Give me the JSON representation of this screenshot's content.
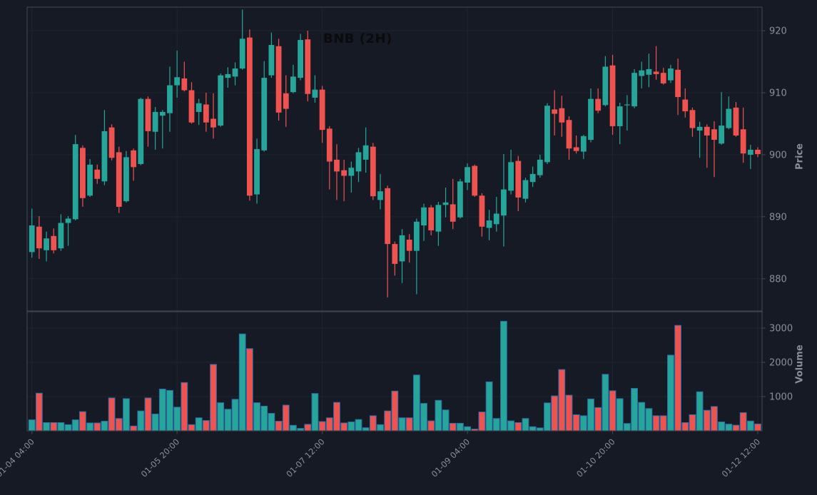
{
  "chart_data": {
    "type": "candlestick",
    "title": "BNB (2H)",
    "symbol": "BNB",
    "timeframe": "2H",
    "legend_position": "none",
    "grid": true,
    "price_axis": {
      "label": "Price",
      "side": "right",
      "ticks": [
        880,
        890,
        900,
        910,
        920
      ],
      "range": [
        874.8,
        923.8
      ]
    },
    "volume_axis": {
      "label": "Volume",
      "side": "right",
      "ticks": [
        1000,
        2000,
        3000
      ],
      "range": [
        0,
        3480
      ]
    },
    "x_axis": {
      "tick_labels": [
        "01-04 04:00",
        "01-05 20:00",
        "01-07 12:00",
        "01-09 04:00",
        "01-10 20:00",
        "01-12 12:00"
      ],
      "tick_indices": [
        0,
        20,
        40,
        60,
        80,
        100
      ],
      "rotation_deg": 45
    },
    "colors": {
      "up": "#26a69a",
      "down": "#ef5350",
      "volume_edge": "#2b6da8",
      "background": "#161a25",
      "grid": "#20242f",
      "spine": "#3d434e",
      "text": "#8b8e98",
      "title": "#0b0b0d"
    },
    "columns": [
      "time",
      "open",
      "high",
      "low",
      "close",
      "volume"
    ],
    "candles": [
      [
        "01-04 04:00",
        884.3,
        891.3,
        883.4,
        888.6,
        320
      ],
      [
        "01-04 06:00",
        888.4,
        890.1,
        883.2,
        884.9,
        1100
      ],
      [
        "01-04 08:00",
        884.6,
        887.6,
        882.8,
        886.5,
        240
      ],
      [
        "01-04 10:00",
        886.9,
        888.1,
        884.1,
        884.6,
        240
      ],
      [
        "01-04 12:00",
        884.9,
        890.4,
        884.5,
        889.0,
        240
      ],
      [
        "01-04 14:00",
        889.0,
        890.1,
        885.3,
        889.7,
        180
      ],
      [
        "01-04 16:00",
        889.6,
        903.2,
        889.4,
        901.7,
        320
      ],
      [
        "01-04 18:00",
        901.1,
        901.5,
        891.6,
        893.0,
        560
      ],
      [
        "01-04 20:00",
        893.4,
        899.3,
        893.2,
        898.4,
        230
      ],
      [
        "01-04 22:00",
        897.6,
        898.4,
        895.3,
        896.1,
        230
      ],
      [
        "01-05 00:00",
        895.7,
        907.2,
        895.1,
        903.8,
        280
      ],
      [
        "01-05 02:00",
        904.4,
        904.9,
        899.1,
        899.5,
        960
      ],
      [
        "01-05 04:00",
        900.4,
        901.3,
        890.6,
        891.6,
        360
      ],
      [
        "01-05 06:00",
        892.5,
        900.6,
        892.3,
        899.6,
        940
      ],
      [
        "01-05 08:00",
        900.7,
        901.0,
        895.8,
        898.0,
        140
      ],
      [
        "01-05 10:00",
        898.5,
        909.2,
        898.3,
        909.0,
        580
      ],
      [
        "01-05 12:00",
        909.0,
        909.4,
        901.3,
        903.8,
        960
      ],
      [
        "01-05 14:00",
        903.7,
        907.7,
        900.8,
        906.9,
        490
      ],
      [
        "01-05 16:00",
        906.3,
        907.2,
        901.0,
        906.9,
        1220
      ],
      [
        "01-05 18:00",
        906.7,
        914.2,
        903.7,
        911.2,
        1180
      ],
      [
        "01-05 20:00",
        911.2,
        916.8,
        909.2,
        912.5,
        690
      ],
      [
        "01-05 22:00",
        912.3,
        915.0,
        910.2,
        910.4,
        1410
      ],
      [
        "01-06 00:00",
        910.4,
        911.7,
        905.0,
        905.2,
        180
      ],
      [
        "01-06 02:00",
        906.9,
        909.0,
        904.8,
        908.3,
        380
      ],
      [
        "01-06 04:00",
        908.1,
        910.0,
        903.7,
        905.2,
        300
      ],
      [
        "01-06 06:00",
        905.8,
        909.9,
        902.6,
        904.4,
        1940
      ],
      [
        "01-06 08:00",
        904.7,
        913.1,
        904.5,
        912.8,
        820
      ],
      [
        "01-06 10:00",
        912.4,
        914.1,
        910.8,
        913.0,
        630
      ],
      [
        "01-06 12:00",
        912.6,
        914.9,
        911.2,
        913.9,
        920
      ],
      [
        "01-06 14:00",
        913.9,
        923.4,
        913.7,
        918.7,
        2830
      ],
      [
        "01-06 16:00",
        918.9,
        920.2,
        892.6,
        893.4,
        2400
      ],
      [
        "01-06 18:00",
        893.6,
        902.6,
        892.1,
        900.9,
        820
      ],
      [
        "01-06 20:00",
        900.7,
        915.1,
        900.5,
        912.4,
        720
      ],
      [
        "01-06 22:00",
        912.8,
        919.7,
        912.4,
        917.7,
        510
      ],
      [
        "01-07 00:00",
        917.5,
        918.7,
        905.5,
        906.8,
        280
      ],
      [
        "01-07 02:00",
        909.9,
        912.8,
        904.5,
        907.4,
        750
      ],
      [
        "01-07 04:00",
        910.1,
        914.5,
        909.9,
        912.6,
        160
      ],
      [
        "01-07 06:00",
        912.4,
        919.5,
        912.0,
        918.5,
        70
      ],
      [
        "01-07 08:00",
        918.6,
        920.0,
        908.6,
        909.8,
        190
      ],
      [
        "01-07 10:00",
        909.2,
        912.8,
        908.4,
        910.5,
        1090
      ],
      [
        "01-07 12:00",
        910.5,
        911.1,
        901.9,
        904.0,
        270
      ],
      [
        "01-07 14:00",
        904.2,
        904.6,
        894.4,
        898.9,
        380
      ],
      [
        "01-07 16:00",
        899.2,
        901.7,
        892.7,
        897.3,
        830
      ],
      [
        "01-07 18:00",
        897.5,
        899.2,
        892.5,
        896.6,
        230
      ],
      [
        "01-07 20:00",
        896.6,
        898.9,
        893.9,
        897.9,
        260
      ],
      [
        "01-07 22:00",
        897.3,
        901.1,
        895.6,
        900.4,
        330
      ],
      [
        "01-08 00:00",
        899.2,
        904.4,
        897.1,
        901.5,
        90
      ],
      [
        "01-08 02:00",
        901.3,
        901.9,
        892.7,
        893.3,
        440
      ],
      [
        "01-08 04:00",
        892.7,
        896.9,
        891.2,
        894.1,
        180
      ],
      [
        "01-08 06:00",
        894.6,
        895.0,
        877.0,
        885.6,
        580
      ],
      [
        "01-08 08:00",
        885.6,
        886.0,
        880.5,
        882.4,
        1160
      ],
      [
        "01-08 10:00",
        882.8,
        888.0,
        879.3,
        887.0,
        380
      ],
      [
        "01-08 12:00",
        886.3,
        887.2,
        882.6,
        884.5,
        380
      ],
      [
        "01-08 14:00",
        884.5,
        889.7,
        877.5,
        889.2,
        1630
      ],
      [
        "01-08 16:00",
        888.6,
        892.1,
        886.1,
        891.5,
        800
      ],
      [
        "01-08 18:00",
        891.5,
        891.9,
        887.0,
        887.8,
        290
      ],
      [
        "01-08 20:00",
        887.6,
        892.4,
        885.3,
        891.9,
        890
      ],
      [
        "01-08 22:00",
        891.9,
        894.7,
        889.9,
        892.3,
        610
      ],
      [
        "01-09 00:00",
        892.0,
        896.1,
        888.0,
        889.2,
        220
      ],
      [
        "01-09 02:00",
        889.9,
        896.1,
        889.7,
        895.7,
        220
      ],
      [
        "01-09 04:00",
        895.5,
        898.6,
        894.3,
        898.0,
        120
      ],
      [
        "01-09 06:00",
        898.2,
        898.4,
        893.2,
        893.4,
        50
      ],
      [
        "01-09 08:00",
        893.4,
        893.8,
        886.8,
        888.4,
        550
      ],
      [
        "01-09 10:00",
        888.2,
        891.1,
        886.2,
        889.4,
        1430
      ],
      [
        "01-09 12:00",
        888.8,
        893.2,
        887.6,
        890.5,
        360
      ],
      [
        "01-09 14:00",
        890.2,
        900.1,
        885.2,
        894.4,
        3200
      ],
      [
        "01-09 16:00",
        894.2,
        900.8,
        893.6,
        898.8,
        290
      ],
      [
        "01-09 18:00",
        899.0,
        899.8,
        890.9,
        893.1,
        240
      ],
      [
        "01-09 20:00",
        892.9,
        896.3,
        892.3,
        895.9,
        360
      ],
      [
        "01-09 22:00",
        895.6,
        898.1,
        894.8,
        896.9,
        120
      ],
      [
        "01-10 00:00",
        896.7,
        900.0,
        896.3,
        899.2,
        85
      ],
      [
        "01-10 02:00",
        898.8,
        908.3,
        898.5,
        907.9,
        815
      ],
      [
        "01-10 04:00",
        907.3,
        910.4,
        903.1,
        906.6,
        1020
      ],
      [
        "01-10 06:00",
        907.5,
        909.5,
        902.9,
        905.2,
        1790
      ],
      [
        "01-10 08:00",
        905.6,
        906.2,
        899.2,
        901.0,
        1040
      ],
      [
        "01-10 10:00",
        901.2,
        903.1,
        900.2,
        900.6,
        470
      ],
      [
        "01-10 12:00",
        900.5,
        903.2,
        899.3,
        903.0,
        440
      ],
      [
        "01-10 14:00",
        902.4,
        910.7,
        902.0,
        909.0,
        930
      ],
      [
        "01-10 16:00",
        909.0,
        910.7,
        906.7,
        907.1,
        680
      ],
      [
        "01-10 18:00",
        908.0,
        915.9,
        907.8,
        914.2,
        1650
      ],
      [
        "01-10 20:00",
        914.4,
        916.1,
        903.2,
        904.6,
        1170
      ],
      [
        "01-10 22:00",
        904.6,
        908.4,
        901.7,
        907.8,
        940
      ],
      [
        "01-11 00:00",
        908.0,
        909.6,
        903.9,
        908.1,
        215
      ],
      [
        "01-11 02:00",
        907.8,
        913.8,
        907.5,
        913.2,
        1240
      ],
      [
        "01-11 04:00",
        912.7,
        915.0,
        910.7,
        913.6,
        830
      ],
      [
        "01-11 06:00",
        912.9,
        916.3,
        910.9,
        913.8,
        650
      ],
      [
        "01-11 08:00",
        913.4,
        917.5,
        912.1,
        913.0,
        440
      ],
      [
        "01-11 10:00",
        913.2,
        914.0,
        911.3,
        911.5,
        440
      ],
      [
        "01-11 12:00",
        912.0,
        914.5,
        911.6,
        913.9,
        2210
      ],
      [
        "01-11 14:00",
        913.7,
        915.5,
        906.4,
        909.3,
        3080
      ],
      [
        "01-11 16:00",
        908.9,
        910.7,
        906.0,
        907.0,
        240
      ],
      [
        "01-11 18:00",
        907.2,
        907.6,
        902.9,
        904.3,
        470
      ],
      [
        "01-11 20:00",
        903.9,
        905.3,
        899.5,
        904.5,
        1140
      ],
      [
        "01-11 22:00",
        904.5,
        904.9,
        897.9,
        903.1,
        600
      ],
      [
        "01-12 00:00",
        904.1,
        905.4,
        896.4,
        902.4,
        710
      ],
      [
        "01-12 02:00",
        901.8,
        910.1,
        901.6,
        904.7,
        260
      ],
      [
        "01-12 04:00",
        904.3,
        909.4,
        904.1,
        907.4,
        195
      ],
      [
        "01-12 06:00",
        907.6,
        908.5,
        902.9,
        903.1,
        165
      ],
      [
        "01-12 08:00",
        904.1,
        907.6,
        898.7,
        900.2,
        530
      ],
      [
        "01-12 10:00",
        900.0,
        901.6,
        897.7,
        900.8,
        285
      ],
      [
        "01-12 12:00",
        900.8,
        901.2,
        899.6,
        900.1,
        200
      ]
    ]
  }
}
